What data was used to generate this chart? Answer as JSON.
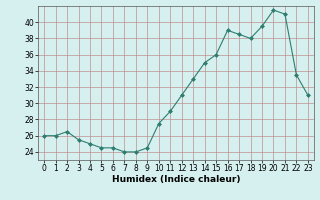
{
  "x": [
    0,
    1,
    2,
    3,
    4,
    5,
    6,
    7,
    8,
    9,
    10,
    11,
    12,
    13,
    14,
    15,
    16,
    17,
    18,
    19,
    20,
    21,
    22,
    23
  ],
  "y": [
    26,
    26,
    26.5,
    25.5,
    25,
    24.5,
    24.5,
    24,
    24,
    24.5,
    27.5,
    29,
    31,
    33,
    35,
    36,
    39,
    38.5,
    38,
    39.5,
    41.5,
    41,
    33.5,
    31
  ],
  "xlabel": "Humidex (Indice chaleur)",
  "xlim": [
    -0.5,
    23.5
  ],
  "ylim": [
    23,
    42
  ],
  "yticks": [
    24,
    26,
    28,
    30,
    32,
    34,
    36,
    38,
    40
  ],
  "xticks": [
    0,
    1,
    2,
    3,
    4,
    5,
    6,
    7,
    8,
    9,
    10,
    11,
    12,
    13,
    14,
    15,
    16,
    17,
    18,
    19,
    20,
    21,
    22,
    23
  ],
  "line_color": "#2e7d6e",
  "marker_color": "#2e7d6e",
  "bg_color": "#d6f0f0",
  "grid_color": "#c09090",
  "label_fontsize": 6.5,
  "tick_fontsize": 5.5
}
